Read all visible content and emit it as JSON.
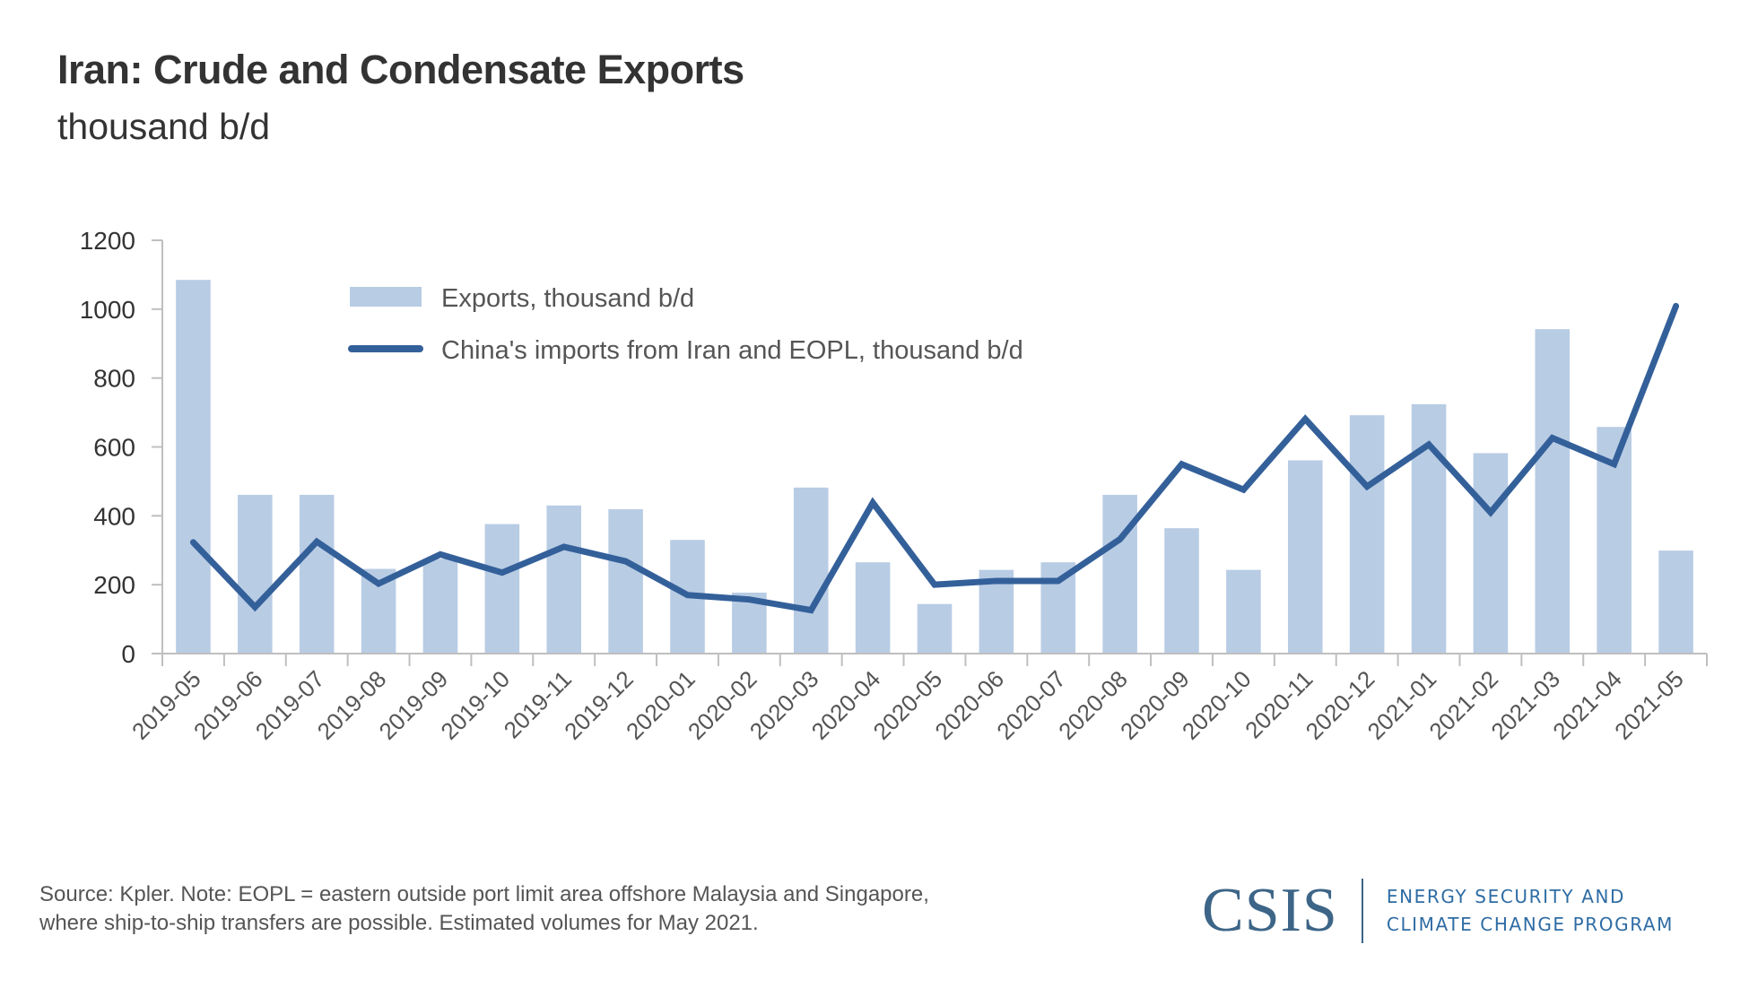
{
  "header": {
    "title": "Iran: Crude and Condensate Exports",
    "subtitle": "thousand b/d"
  },
  "footer": {
    "note_line1": "Source: Kpler. Note: EOPL = eastern outside port limit area offshore Malaysia and Singapore,",
    "note_line2": "where ship-to-ship transfers are possible. Estimated volumes for May 2021."
  },
  "logo": {
    "name": "CSIS",
    "program_line1": "ENERGY SECURITY AND",
    "program_line2": "CLIMATE CHANGE PROGRAM",
    "color": "#3D6587"
  },
  "chart_data": {
    "type": "bar",
    "title": "Iran: Crude and Condensate Exports",
    "subtitle": "thousand b/d",
    "xlabel": "",
    "ylabel": "",
    "ylim": [
      0,
      1200
    ],
    "yticks": [
      0,
      200,
      400,
      600,
      800,
      1000,
      1200
    ],
    "grid": false,
    "legend_position": "top-left",
    "categories": [
      "2019-05",
      "2019-06",
      "2019-07",
      "2019-08",
      "2019-09",
      "2019-10",
      "2019-11",
      "2019-12",
      "2020-01",
      "2020-02",
      "2020-03",
      "2020-04",
      "2020-05",
      "2020-06",
      "2020-07",
      "2020-08",
      "2020-09",
      "2020-10",
      "2020-11",
      "2020-12",
      "2021-01",
      "2021-02",
      "2021-03",
      "2021-04",
      "2021-05"
    ],
    "series": [
      {
        "name": "Exports, thousand b/d",
        "type": "bar",
        "color": "#B8CCE4",
        "values": [
          1085,
          461,
          461,
          246,
          275,
          376,
          430,
          419,
          330,
          177,
          482,
          265,
          144,
          243,
          265,
          461,
          364,
          243,
          561,
          692,
          724,
          582,
          942,
          658,
          299
        ]
      },
      {
        "name": "China's imports from Iran and EOPL, thousand b/d",
        "type": "line",
        "color": "#34609A",
        "values": [
          323,
          135,
          325,
          203,
          288,
          235,
          310,
          268,
          170,
          157,
          126,
          438,
          200,
          211,
          211,
          332,
          550,
          476,
          681,
          485,
          607,
          410,
          626,
          550,
          1009
        ]
      }
    ]
  }
}
